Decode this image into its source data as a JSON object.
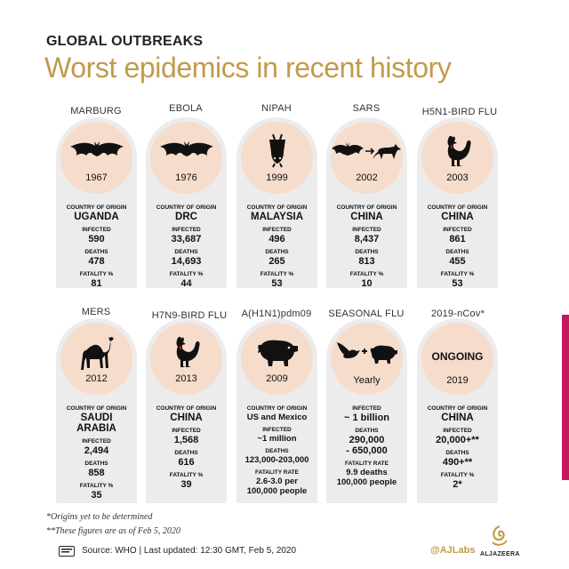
{
  "kicker": "GLOBAL OUTBREAKS",
  "headline": "Worst epidemics in recent history",
  "row1": [
    {
      "name": "MARBURG",
      "year": "1967",
      "origin": "UGANDA",
      "infected": "590",
      "deaths": "478",
      "fatality": "81",
      "icon": "bat-icon"
    },
    {
      "name": "EBOLA",
      "year": "1976",
      "origin": "DRC",
      "infected": "33,687",
      "deaths": "14,693",
      "fatality": "44",
      "icon": "bat-icon"
    },
    {
      "name": "NIPAH",
      "year": "1999",
      "origin": "MALAYSIA",
      "infected": "496",
      "deaths": "265",
      "fatality": "53",
      "icon": "hanging-bat-icon"
    },
    {
      "name": "SARS",
      "year": "2002",
      "origin": "CHINA",
      "infected": "8,437",
      "deaths": "813",
      "fatality": "10",
      "icon": "bat-civet-icon"
    },
    {
      "name": "H5N1-BIRD FLU",
      "year": "2003",
      "origin": "CHINA",
      "infected": "861",
      "deaths": "455",
      "fatality": "53",
      "icon": "rooster-icon"
    }
  ],
  "row2": {
    "mers": {
      "name": "MERS",
      "year": "2012",
      "origin_1": "SAUDI",
      "origin_2": "ARABIA",
      "infected": "2,494",
      "deaths": "858",
      "fatality": "35",
      "icon": "camel-icon"
    },
    "h7n9": {
      "name": "H7N9-BIRD FLU",
      "year": "2013",
      "origin": "CHINA",
      "infected": "1,568",
      "deaths": "616",
      "fatality": "39",
      "icon": "rooster-icon"
    },
    "h1n1": {
      "name": "A(H1N1)pdm09",
      "year": "2009",
      "origin": "US and Mexico",
      "infected": "~1 million",
      "deaths": "123,000-203,000",
      "fatality_1": "2.6-3.0 per",
      "fatality_2": "100,000 people",
      "icon": "pig-icon"
    },
    "seasonal": {
      "name": "SEASONAL FLU",
      "period": "Yearly",
      "infected": "~ 1 billion",
      "deaths_1": "290,000",
      "deaths_2": "- 650,000",
      "fatality_1": "9.9 deaths",
      "fatality_2": "100,000 people",
      "icon": "bird-pig-icon"
    },
    "ncov": {
      "name": "2019-nCov*",
      "status": "ONGOING",
      "year": "2019",
      "origin": "CHINA",
      "infected": "20,000+**",
      "deaths": "490+**",
      "fatality": "2*"
    }
  },
  "labels": {
    "country_of_origin": "COUNTRY OF ORIGIN",
    "infected": "INFECTED",
    "deaths": "DEATHS",
    "fatality_pct": "FATALITY %",
    "fatality_rate": "FATALITY RATE"
  },
  "footnotes": {
    "origins": "*Origins yet to be determined",
    "figures": "**These figures are as of Feb 5, 2020",
    "source": "Source: WHO  |  Last updated: 12:30 GMT, Feb 5, 2020"
  },
  "brand": {
    "handle": "@AJLabs",
    "network": "ALJAZEERA"
  },
  "colors": {
    "gold": "#c39a4a",
    "card": "#ececec",
    "disc": "#f6dccb",
    "accent": "#c2185b"
  }
}
